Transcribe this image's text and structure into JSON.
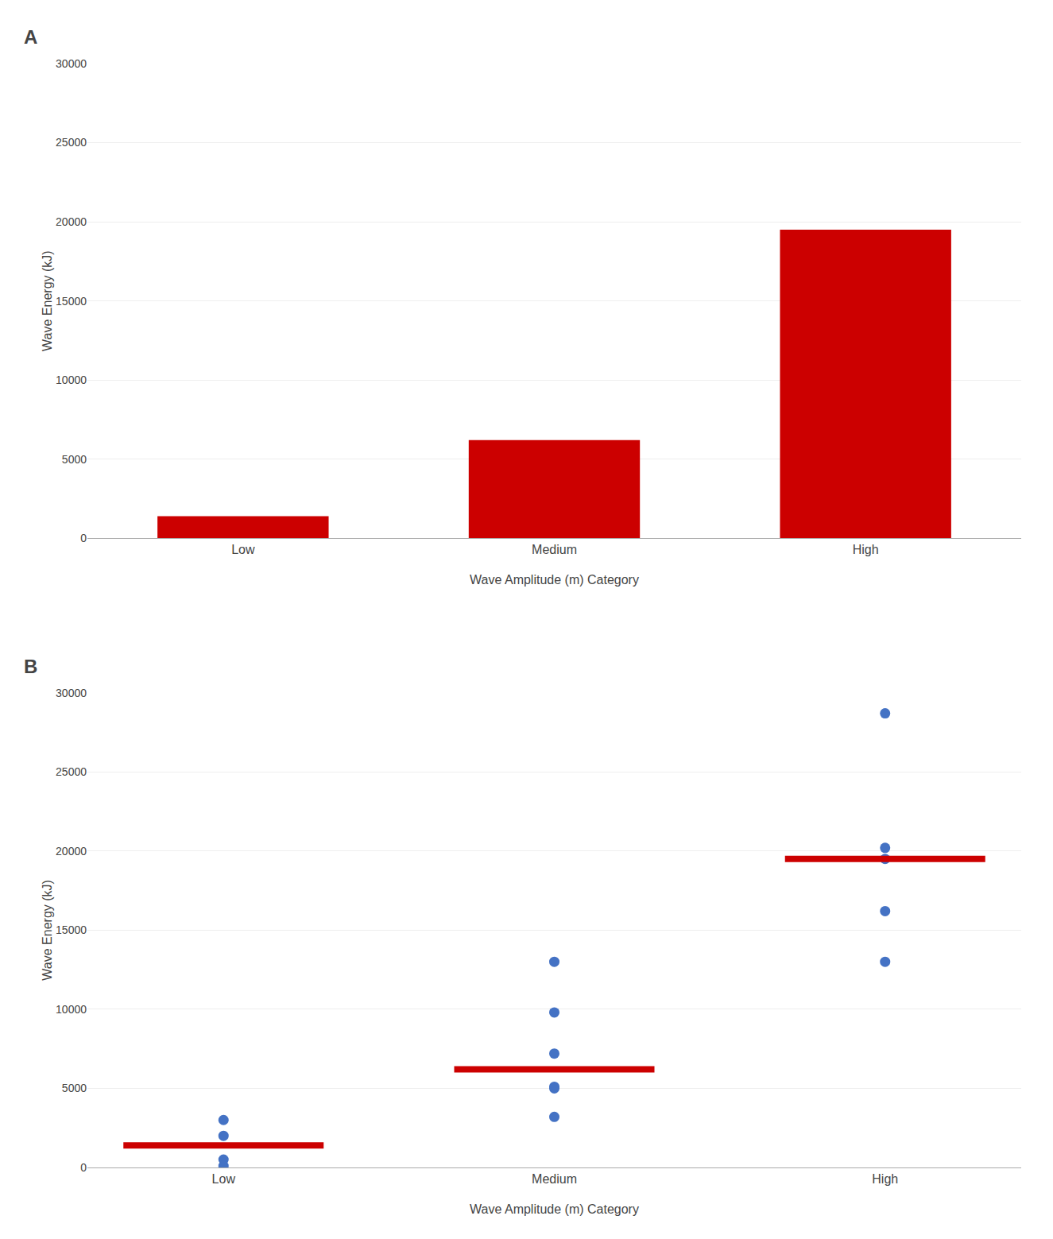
{
  "chart_data": [
    {
      "type": "bar",
      "title": "A",
      "categories": [
        "Low",
        "Medium",
        "High"
      ],
      "values": [
        1400,
        6200,
        19500
      ],
      "color": "#cc0000",
      "xlabel": "Wave Amplitude (m) Category",
      "ylabel": "Wave Energy (kJ)",
      "ylim": [
        0,
        30000
      ],
      "yticks": [
        0,
        5000,
        10000,
        15000,
        20000,
        25000,
        30000
      ],
      "grid": true
    },
    {
      "type": "scatter",
      "title": "B",
      "categories": [
        "Low",
        "Medium",
        "High"
      ],
      "series": [
        {
          "type": "scatter",
          "marker": "circle",
          "color": "#4472c4",
          "values": [
            [
              3000,
              2000,
              500,
              100
            ],
            [
              13000,
              9800,
              7200,
              5000,
              5100,
              3200
            ],
            [
              28700,
              20200,
              19500,
              16200,
              13000
            ]
          ]
        },
        {
          "type": "scatter",
          "marker": "hline",
          "color": "#cc0000",
          "values": [
            1400,
            6200,
            19500
          ]
        }
      ],
      "xlabel": "Wave Amplitude (m) Category",
      "ylabel": "Wave Energy (kJ)",
      "ylim": [
        0,
        30000
      ],
      "yticks": [
        0,
        5000,
        10000,
        15000,
        20000,
        25000,
        30000
      ],
      "grid": true
    }
  ]
}
